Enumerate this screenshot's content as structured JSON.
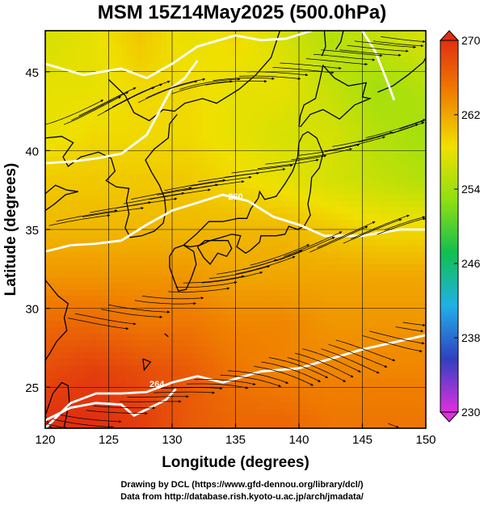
{
  "title": "MSM 15Z14May2025 (500.0hPa)",
  "credits": [
    "Drawing by DCL (https://www.gfd-dennou.org/library/dcl/)",
    "Data from http://database.rish.kyoto-u.ac.jp/arch/jmadata/"
  ],
  "chart_data": {
    "type": "heatmap",
    "title": "MSM 15Z14May2025 (500.0hPa)",
    "xlabel": "Longitude (degrees)",
    "ylabel": "Latitude  (degrees)",
    "xlim": [
      120,
      150
    ],
    "ylim": [
      22.4,
      47.6
    ],
    "xticks": [
      120,
      125,
      130,
      135,
      140,
      145,
      150
    ],
    "yticks": [
      25,
      30,
      35,
      40,
      45
    ],
    "grid": true,
    "colorbar": {
      "min": 230,
      "max": 270,
      "ticks": [
        230,
        238,
        246,
        254,
        262,
        270
      ],
      "colors": [
        "#e030e0",
        "#3040c0",
        "#20b0e8",
        "#10c050",
        "#90e010",
        "#f0e000",
        "#f08000",
        "#e03010"
      ],
      "extend": "both",
      "placement": "right"
    },
    "contour_lines": {
      "color": "#ffffff",
      "paths": [
        [
          [
            120,
            45.5
          ],
          [
            123,
            44.8
          ],
          [
            126,
            45.2
          ],
          [
            128,
            44.6
          ],
          [
            130,
            45.5
          ],
          [
            132,
            46.6
          ],
          [
            135,
            47.3
          ],
          [
            137,
            47.0
          ],
          [
            139,
            47.1
          ],
          [
            141,
            47.6
          ]
        ],
        [
          [
            145,
            47.6
          ],
          [
            146,
            46.3
          ],
          [
            147,
            44.3
          ],
          [
            147.5,
            43.2
          ]
        ],
        [
          [
            120,
            39.2
          ],
          [
            122,
            39.3
          ],
          [
            124,
            39.5
          ],
          [
            126,
            39.8
          ],
          [
            128,
            41.0
          ],
          [
            129,
            42.5
          ],
          [
            130,
            44.0
          ],
          [
            131,
            44.6
          ],
          [
            132,
            45.7
          ]
        ],
        [
          [
            120,
            33.6
          ],
          [
            122,
            34.0
          ],
          [
            124,
            34.1
          ],
          [
            126,
            34.3
          ],
          [
            128,
            35.3
          ],
          [
            130,
            36.2
          ],
          [
            132,
            36.7
          ],
          [
            134,
            37.2
          ],
          [
            136,
            36.8
          ],
          [
            138,
            35.8
          ],
          [
            140,
            35.3
          ],
          [
            142,
            34.6
          ],
          [
            145,
            34.6
          ],
          [
            148,
            35.0
          ],
          [
            150,
            35.0
          ]
        ],
        [
          [
            120,
            22.4
          ],
          [
            122,
            24.0
          ],
          [
            124,
            24.6
          ],
          [
            126,
            24.6
          ],
          [
            128,
            24.7
          ],
          [
            130,
            25.3
          ],
          [
            132,
            25.7
          ],
          [
            134,
            25.3
          ],
          [
            137,
            26.0
          ],
          [
            140,
            26.2
          ],
          [
            145,
            27.4
          ],
          [
            150,
            28.3
          ]
        ],
        [
          [
            120,
            22.9
          ],
          [
            122,
            23.7
          ],
          [
            124,
            24.0
          ],
          [
            126,
            23.9
          ],
          [
            127,
            23.2
          ],
          [
            128,
            23.6
          ],
          [
            129.5,
            24.2
          ],
          [
            130.3,
            24.9
          ]
        ]
      ],
      "labels": [
        {
          "text": "260",
          "lon": 135,
          "lat": 36.9
        },
        {
          "text": "264",
          "lon": 128.8,
          "lat": 25.0
        }
      ]
    },
    "temperature_field": {
      "units": "K",
      "grid_lat": [
        47,
        44,
        41,
        38,
        35,
        32,
        29,
        26,
        23
      ],
      "grid_lon": [
        120,
        123.75,
        127.5,
        131.25,
        135,
        138.75,
        142.5,
        146.25,
        150
      ],
      "values": [
        [
          257,
          258,
          260,
          258,
          259,
          257,
          255,
          256,
          257
        ],
        [
          258,
          258,
          259,
          259,
          258,
          258,
          256,
          254,
          255
        ],
        [
          258,
          259,
          259,
          259,
          258,
          257,
          257,
          255,
          254
        ],
        [
          260,
          260,
          260,
          260,
          259,
          258,
          257,
          256,
          255
        ],
        [
          261,
          261,
          261,
          261,
          261,
          261,
          260,
          259,
          259
        ],
        [
          263,
          263,
          263,
          263,
          262,
          262,
          262,
          262,
          262
        ],
        [
          266,
          266,
          265,
          265,
          264,
          264,
          263,
          263,
          263
        ],
        [
          268,
          269,
          268,
          267,
          265,
          264,
          264,
          264,
          264
        ],
        [
          270,
          270,
          269,
          267,
          266,
          266,
          265,
          265,
          265
        ]
      ]
    },
    "wind": {
      "description": "streamlines, dominant flow west to east",
      "streamline_count": 100
    }
  }
}
